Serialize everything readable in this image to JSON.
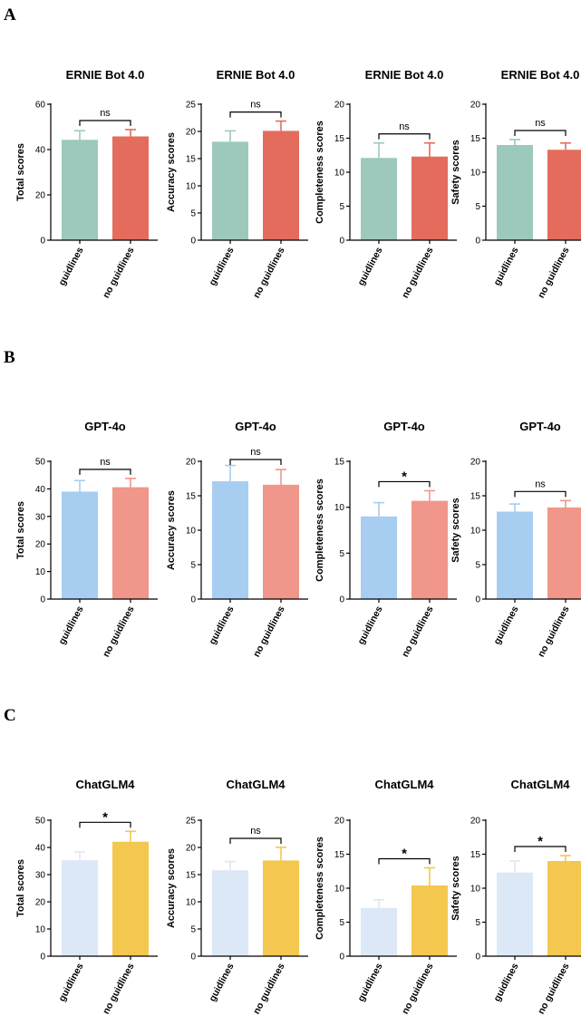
{
  "panels": [
    {
      "letter": "A",
      "model": "ERNIE Bot 4.0"
    },
    {
      "letter": "B",
      "model": "GPT-4o"
    },
    {
      "letter": "C",
      "model": "ChatGLM4"
    }
  ],
  "chart_data": [
    {
      "type": "bar",
      "panel": "A",
      "title": "ERNIE Bot 4.0",
      "ylabel": "Total scores",
      "categories": [
        "guidlines",
        "no guidlines"
      ],
      "values": [
        44.3,
        45.8
      ],
      "errors": [
        4,
        3
      ],
      "ylim": [
        0,
        60
      ],
      "yticks": [
        0,
        20,
        40,
        60
      ],
      "significance": "ns",
      "colors": [
        "#9dc9bd",
        "#e46c5c"
      ]
    },
    {
      "type": "bar",
      "panel": "A",
      "title": "ERNIE Bot 4.0",
      "ylabel": "Accuracy scores",
      "categories": [
        "guidlines",
        "no guidlines"
      ],
      "values": [
        18.1,
        20.1
      ],
      "errors": [
        2,
        1.8
      ],
      "ylim": [
        0,
        25
      ],
      "yticks": [
        0,
        5,
        10,
        15,
        20,
        25
      ],
      "significance": "ns",
      "colors": [
        "#9dc9bd",
        "#e46c5c"
      ]
    },
    {
      "type": "bar",
      "panel": "A",
      "title": "ERNIE Bot 4.0",
      "ylabel": "Completeness scores",
      "categories": [
        "guidlines",
        "no guidlines"
      ],
      "values": [
        12.1,
        12.3
      ],
      "errors": [
        2.2,
        2
      ],
      "ylim": [
        0,
        20
      ],
      "yticks": [
        0,
        5,
        10,
        15,
        20
      ],
      "significance": "ns",
      "colors": [
        "#9dc9bd",
        "#e46c5c"
      ]
    },
    {
      "type": "bar",
      "panel": "A",
      "title": "ERNIE Bot 4.0",
      "ylabel": "Safety scores",
      "categories": [
        "guidlines",
        "no guidlines"
      ],
      "values": [
        14,
        13.3
      ],
      "errors": [
        0.8,
        1
      ],
      "ylim": [
        0,
        20
      ],
      "yticks": [
        0,
        5,
        10,
        15,
        20
      ],
      "significance": "ns",
      "colors": [
        "#9dc9bd",
        "#e46c5c"
      ]
    },
    {
      "type": "bar",
      "panel": "B",
      "title": "GPT-4o",
      "ylabel": "Total scores",
      "categories": [
        "guidlines",
        "no guidlines"
      ],
      "values": [
        39,
        40.6
      ],
      "errors": [
        4,
        3.2
      ],
      "ylim": [
        0,
        50
      ],
      "yticks": [
        0,
        10,
        20,
        30,
        40,
        50
      ],
      "significance": "ns",
      "colors": [
        "#a7cdf1",
        "#f0968a"
      ]
    },
    {
      "type": "bar",
      "panel": "B",
      "title": "GPT-4o",
      "ylabel": "Accuracy scores",
      "categories": [
        "guidlines",
        "no guidlines"
      ],
      "values": [
        17.1,
        16.6
      ],
      "errors": [
        2.3,
        2.2
      ],
      "ylim": [
        0,
        20
      ],
      "yticks": [
        0,
        5,
        10,
        15,
        20
      ],
      "significance": "ns",
      "colors": [
        "#a7cdf1",
        "#f0968a"
      ]
    },
    {
      "type": "bar",
      "panel": "B",
      "title": "GPT-4o",
      "ylabel": "Completeness scores",
      "categories": [
        "guidlines",
        "no guidlines"
      ],
      "values": [
        9,
        10.7
      ],
      "errors": [
        1.5,
        1.1
      ],
      "ylim": [
        0,
        15
      ],
      "yticks": [
        0,
        5,
        10,
        15
      ],
      "significance": "*",
      "colors": [
        "#a7cdf1",
        "#f0968a"
      ]
    },
    {
      "type": "bar",
      "panel": "B",
      "title": "GPT-4o",
      "ylabel": "Safety scores",
      "categories": [
        "guidlines",
        "no guidlines"
      ],
      "values": [
        12.7,
        13.3
      ],
      "errors": [
        1.1,
        1
      ],
      "ylim": [
        0,
        20
      ],
      "yticks": [
        0,
        5,
        10,
        15,
        20
      ],
      "significance": "ns",
      "colors": [
        "#a7cdf1",
        "#f0968a"
      ]
    },
    {
      "type": "bar",
      "panel": "C",
      "title": "ChatGLM4",
      "ylabel": "Total scores",
      "categories": [
        "guidlines",
        "no guidlines"
      ],
      "values": [
        35.3,
        42.1
      ],
      "errors": [
        3,
        3.8
      ],
      "ylim": [
        0,
        50
      ],
      "yticks": [
        0,
        10,
        20,
        30,
        40,
        50
      ],
      "significance": "*",
      "colors": [
        "#dce8f6",
        "#f4c74f"
      ]
    },
    {
      "type": "bar",
      "panel": "C",
      "title": "ChatGLM4",
      "ylabel": "Accuracy scores",
      "categories": [
        "guidlines",
        "no guidlines"
      ],
      "values": [
        15.8,
        17.6
      ],
      "errors": [
        1.6,
        2.4
      ],
      "ylim": [
        0,
        25
      ],
      "yticks": [
        0,
        5,
        10,
        15,
        20,
        25
      ],
      "significance": "ns",
      "colors": [
        "#dce8f6",
        "#f4c74f"
      ]
    },
    {
      "type": "bar",
      "panel": "C",
      "title": "ChatGLM4",
      "ylabel": "Completeness scores",
      "categories": [
        "guidlines",
        "no guidlines"
      ],
      "values": [
        7.1,
        10.4
      ],
      "errors": [
        1.2,
        2.6
      ],
      "ylim": [
        0,
        20
      ],
      "yticks": [
        0,
        5,
        10,
        15,
        20
      ],
      "significance": "*",
      "colors": [
        "#dce8f6",
        "#f4c74f"
      ]
    },
    {
      "type": "bar",
      "panel": "C",
      "title": "ChatGLM4",
      "ylabel": "Safety scores",
      "categories": [
        "guidlines",
        "no guidlines"
      ],
      "values": [
        12.3,
        14
      ],
      "errors": [
        1.7,
        0.8
      ],
      "ylim": [
        0,
        20
      ],
      "yticks": [
        0,
        5,
        10,
        15,
        20
      ],
      "significance": "*",
      "colors": [
        "#dce8f6",
        "#f4c74f"
      ]
    }
  ]
}
